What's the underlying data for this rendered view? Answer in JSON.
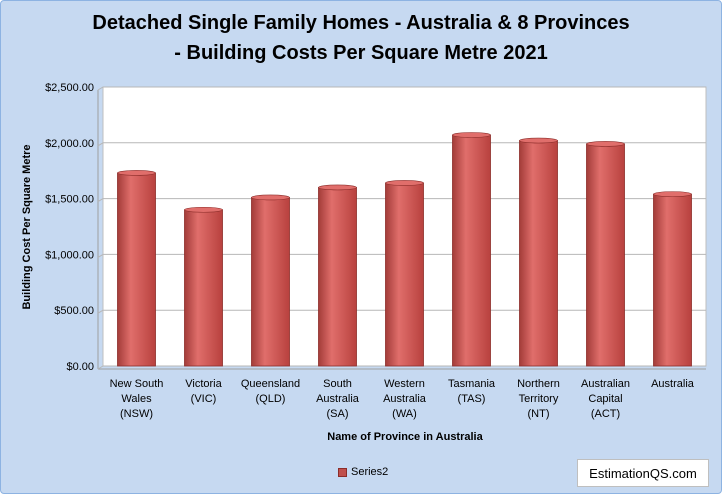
{
  "chart_data": {
    "type": "bar",
    "title_line1": "Detached Single Family Homes  - Australia & 8 Provinces",
    "title_line2": "- Building Costs Per Square Metre 2021",
    "xlabel": "Name of Province in Australia",
    "ylabel": "Building Cost Per Square Metre",
    "ylim": [
      0,
      2500
    ],
    "yticks": [
      "$0.00",
      "$500.00",
      "$1,000.00",
      "$1,500.00",
      "$2,000.00",
      "$2,500.00"
    ],
    "grid": true,
    "legend_position": "bottom",
    "categories": [
      [
        "New South",
        "Wales",
        "(NSW)"
      ],
      [
        "Victoria",
        "(VIC)"
      ],
      [
        "Queensland",
        "(QLD)"
      ],
      [
        "South",
        "Australia",
        "(SA)"
      ],
      [
        "Western",
        "Australia",
        "(WA)"
      ],
      [
        "Tasmania",
        "(TAS)"
      ],
      [
        "Northern",
        "Territory",
        "(NT)"
      ],
      [
        "Australian",
        "Capital",
        "(ACT)"
      ],
      [
        "Australia"
      ]
    ],
    "series": [
      {
        "name": "Series2",
        "values": [
          1730,
          1400,
          1510,
          1600,
          1640,
          2070,
          2020,
          1990,
          1540
        ]
      }
    ]
  },
  "colors": {
    "bar": "#c0504d",
    "bar_dark": "#8c2d2a",
    "bar_light": "#e06e6b",
    "background": "#c6d9f1"
  },
  "watermark": "EstimationQS.com"
}
